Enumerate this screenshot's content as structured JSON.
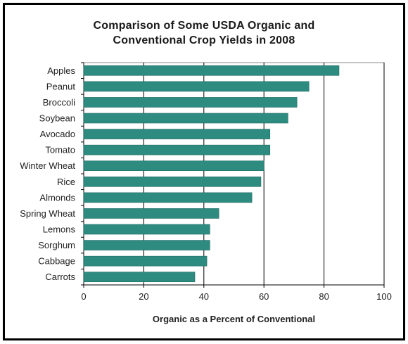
{
  "chart_data": {
    "type": "bar",
    "orientation": "horizontal",
    "title_lines": [
      "Comparison of Some USDA Organic and",
      "Conventional Crop Yields in 2008"
    ],
    "categories": [
      "Apples",
      "Peanut",
      "Broccoli",
      "Soybean",
      "Avocado",
      "Tomato",
      "Winter Wheat",
      "Rice",
      "Almonds",
      "Spring Wheat",
      "Lemons",
      "Sorghum",
      "Cabbage",
      "Carrots"
    ],
    "values": [
      85,
      75,
      71,
      68,
      62,
      62,
      60,
      59,
      56,
      45,
      42,
      42,
      41,
      37
    ],
    "xlabel": "Organic as a Percent of Conventional",
    "ylabel": "",
    "xlim": [
      0,
      100
    ],
    "xticks": [
      0,
      20,
      40,
      60,
      80,
      100
    ],
    "grid": "vertical gridlines",
    "legend": "none",
    "bar_color": "#2e8b80"
  }
}
